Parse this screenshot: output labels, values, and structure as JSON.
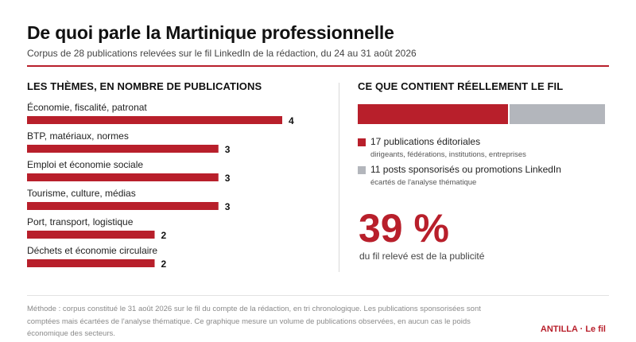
{
  "header": {
    "title": "De quoi parle la Martinique professionnelle",
    "subtitle": "Corpus de 28 publications relevées sur le fil LinkedIn de la rédaction, du 24 au 31 août 2026"
  },
  "colors": {
    "accent": "#b81f2b",
    "gray": "#b3b6bc",
    "rule": "#b81f2b"
  },
  "chart_data": [
    {
      "type": "bar",
      "orientation": "horizontal",
      "title": "LES THÈMES, EN NOMBRE DE PUBLICATIONS",
      "categories": [
        "Économie, fiscalité, patronat",
        "BTP, matériaux, normes",
        "Emploi et économie sociale",
        "Tourisme, culture, médias",
        "Port, transport, logistique",
        "Déchets et économie circulaire"
      ],
      "values": [
        4,
        3,
        3,
        3,
        2,
        2
      ],
      "xlim": [
        0,
        4
      ],
      "grid": false
    },
    {
      "type": "bar",
      "stacked": true,
      "title": "CE QUE CONTIENT RÉELLEMENT LE FIL",
      "series": [
        {
          "name": "17 publications éditoriales",
          "note": "dirigeants, fédérations, institutions, entreprises",
          "value": 17,
          "color": "#b81f2b"
        },
        {
          "name": "11 posts sponsorisés ou promotions LinkedIn",
          "note": "écartés de l'analyse thématique",
          "value": 11,
          "color": "#b3b6bc"
        }
      ]
    }
  ],
  "highlight": {
    "value": "39 %",
    "caption": "du fil relevé est de la publicité"
  },
  "footer": {
    "note": "Méthode : corpus constitué le 31 août 2026 sur le fil du compte de la rédaction, en tri chronologique. Les publications sponsorisées sont comptées mais écartées de l'analyse thématique. Ce graphique mesure un volume de publications observées, en aucun cas le poids économique des secteurs.",
    "brand": "ANTILLA · Le fil"
  }
}
